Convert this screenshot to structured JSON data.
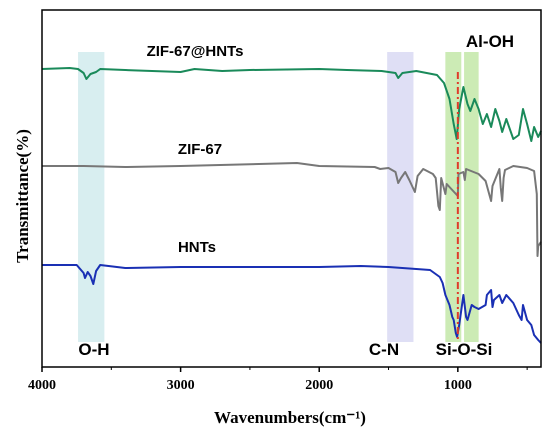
{
  "chart_data": {
    "type": "line",
    "xlabel": "Wavenumbers(cm⁻¹)",
    "ylabel": "Transmittance(%)",
    "xlim": [
      4000,
      400
    ],
    "x_reversed": true,
    "x_ticks": [
      4000,
      3000,
      2000,
      1000
    ],
    "y_ticks_shown": false,
    "grid": false,
    "series": [
      {
        "name": "ZIF-67@HNTs",
        "color": "#1a8a5a",
        "baseline": 69,
        "points": [
          [
            4000,
            0
          ],
          [
            3800,
            -1
          ],
          [
            3740,
            0
          ],
          [
            3700,
            4
          ],
          [
            3680,
            10
          ],
          [
            3650,
            5
          ],
          [
            3610,
            3
          ],
          [
            3580,
            0
          ],
          [
            3400,
            1
          ],
          [
            3000,
            3
          ],
          [
            2900,
            0
          ],
          [
            2700,
            2
          ],
          [
            2500,
            1
          ],
          [
            2000,
            0
          ],
          [
            1800,
            1
          ],
          [
            1550,
            2
          ],
          [
            1450,
            4
          ],
          [
            1430,
            9
          ],
          [
            1400,
            4
          ],
          [
            1300,
            2
          ],
          [
            1150,
            6
          ],
          [
            1100,
            14
          ],
          [
            1060,
            30
          ],
          [
            1030,
            55
          ],
          [
            1008,
            70
          ],
          [
            990,
            40
          ],
          [
            960,
            18
          ],
          [
            930,
            35
          ],
          [
            910,
            42
          ],
          [
            880,
            30
          ],
          [
            850,
            40
          ],
          [
            820,
            55
          ],
          [
            790,
            45
          ],
          [
            760,
            58
          ],
          [
            730,
            40
          ],
          [
            700,
            52
          ],
          [
            680,
            63
          ],
          [
            650,
            50
          ],
          [
            620,
            62
          ],
          [
            600,
            70
          ],
          [
            560,
            66
          ],
          [
            530,
            40
          ],
          [
            500,
            55
          ],
          [
            470,
            72
          ],
          [
            450,
            58
          ],
          [
            420,
            68
          ],
          [
            400,
            62
          ]
        ]
      },
      {
        "name": "ZIF-67",
        "color": "#777777",
        "baseline": 166,
        "points": [
          [
            4000,
            0
          ],
          [
            3700,
            0
          ],
          [
            3400,
            1
          ],
          [
            3000,
            0
          ],
          [
            2160,
            -3
          ],
          [
            2000,
            0
          ],
          [
            1600,
            1
          ],
          [
            1560,
            3
          ],
          [
            1500,
            2
          ],
          [
            1450,
            6
          ],
          [
            1430,
            17
          ],
          [
            1410,
            12
          ],
          [
            1380,
            6
          ],
          [
            1350,
            14
          ],
          [
            1310,
            26
          ],
          [
            1290,
            10
          ],
          [
            1250,
            3
          ],
          [
            1180,
            8
          ],
          [
            1160,
            12
          ],
          [
            1140,
            40
          ],
          [
            1130,
            44
          ],
          [
            1120,
            12
          ],
          [
            1090,
            28
          ],
          [
            1080,
            18
          ],
          [
            1000,
            30
          ],
          [
            995,
            8
          ],
          [
            960,
            6
          ],
          [
            950,
            14
          ],
          [
            940,
            3
          ],
          [
            850,
            8
          ],
          [
            800,
            15
          ],
          [
            760,
            35
          ],
          [
            750,
            20
          ],
          [
            700,
            3
          ],
          [
            690,
            22
          ],
          [
            680,
            35
          ],
          [
            670,
            12
          ],
          [
            660,
            4
          ],
          [
            600,
            0
          ],
          [
            500,
            2
          ],
          [
            450,
            5
          ],
          [
            430,
            28
          ],
          [
            425,
            90
          ],
          [
            420,
            80
          ],
          [
            410,
            78
          ],
          [
            400,
            76
          ]
        ]
      },
      {
        "name": "HNTs",
        "color": "#1a30b4",
        "baseline": 265,
        "points": [
          [
            4000,
            0
          ],
          [
            3750,
            0
          ],
          [
            3700,
            8
          ],
          [
            3690,
            13
          ],
          [
            3670,
            7
          ],
          [
            3650,
            11
          ],
          [
            3630,
            19
          ],
          [
            3610,
            6
          ],
          [
            3580,
            0
          ],
          [
            3400,
            3
          ],
          [
            3000,
            2
          ],
          [
            2000,
            2
          ],
          [
            1700,
            1
          ],
          [
            1500,
            2
          ],
          [
            1200,
            5
          ],
          [
            1130,
            12
          ],
          [
            1110,
            18
          ],
          [
            1090,
            30
          ],
          [
            1060,
            40
          ],
          [
            1040,
            52
          ],
          [
            1030,
            55
          ],
          [
            1015,
            68
          ],
          [
            1005,
            72
          ],
          [
            990,
            60
          ],
          [
            960,
            30
          ],
          [
            940,
            52
          ],
          [
            930,
            55
          ],
          [
            910,
            45
          ],
          [
            900,
            40
          ],
          [
            880,
            42
          ],
          [
            850,
            44
          ],
          [
            800,
            40
          ],
          [
            790,
            30
          ],
          [
            760,
            25
          ],
          [
            750,
            42
          ],
          [
            740,
            35
          ],
          [
            700,
            30
          ],
          [
            680,
            38
          ],
          [
            650,
            30
          ],
          [
            600,
            38
          ],
          [
            560,
            50
          ],
          [
            540,
            55
          ],
          [
            530,
            40
          ],
          [
            500,
            55
          ],
          [
            470,
            60
          ],
          [
            450,
            70
          ],
          [
            420,
            75
          ],
          [
            400,
            78
          ]
        ]
      }
    ],
    "series_labels": [
      "ZIF-67@HNTs",
      "ZIF-67",
      "HNTs"
    ],
    "bands": [
      {
        "from": 3740,
        "to": 3550,
        "color": "#a9d9de",
        "label": "O-H"
      },
      {
        "from": 1510,
        "to": 1320,
        "color": "#b7b7e8",
        "label": "C-N"
      },
      {
        "from": 1090,
        "to": 975,
        "color": "#8fd35a",
        "label": "Si-O-Si"
      },
      {
        "from": 955,
        "to": 850,
        "color": "#8fd35a",
        "label": "Al-OH"
      }
    ],
    "reference_line": {
      "x": 1000,
      "color": "#e03b2a",
      "style": "dash-dot"
    }
  }
}
